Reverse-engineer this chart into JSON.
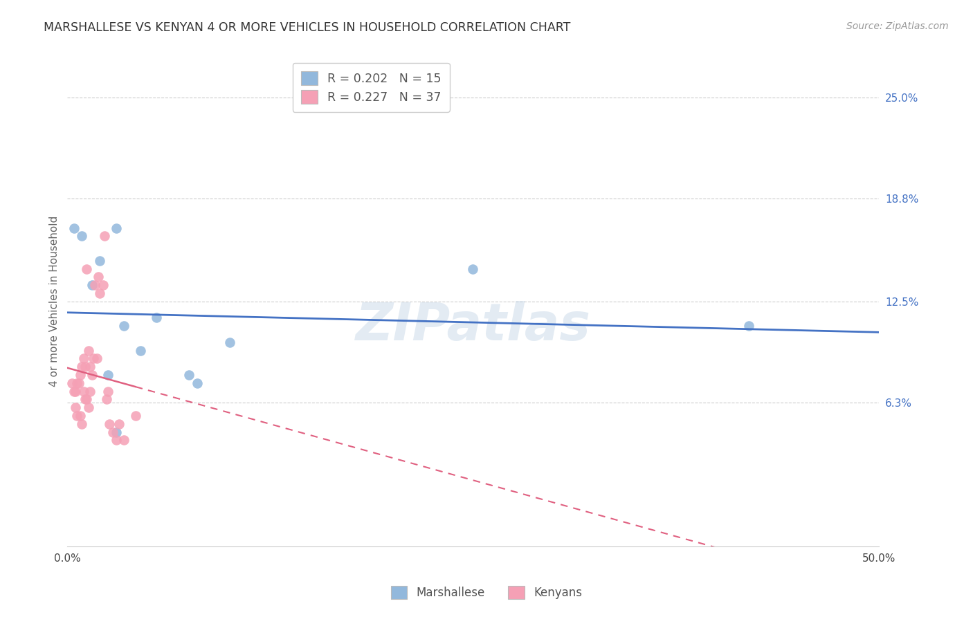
{
  "title": "MARSHALLESE VS KENYAN 4 OR MORE VEHICLES IN HOUSEHOLD CORRELATION CHART",
  "source": "Source: ZipAtlas.com",
  "ylabel_label": "4 or more Vehicles in Household",
  "marshallese_color": "#92b8dc",
  "kenyan_color": "#f5a0b5",
  "marshallese_R": 0.202,
  "marshallese_N": 15,
  "kenyan_R": 0.227,
  "kenyan_N": 37,
  "marshallese_line_color": "#4472c4",
  "kenyan_line_color": "#e06080",
  "background_color": "#ffffff",
  "grid_color": "#cccccc",
  "marshallese_x": [
    0.4,
    0.9,
    1.5,
    2.0,
    3.0,
    3.5,
    4.5,
    5.5,
    7.5,
    8.0,
    10.0,
    3.0,
    42.0,
    25.0,
    2.5
  ],
  "marshallese_y": [
    17.0,
    16.5,
    13.5,
    15.0,
    17.0,
    11.0,
    9.5,
    11.5,
    8.0,
    7.5,
    10.0,
    4.5,
    11.0,
    14.5,
    8.0
  ],
  "kenyan_x": [
    0.3,
    0.4,
    0.5,
    0.6,
    0.7,
    0.8,
    0.9,
    1.0,
    1.1,
    1.2,
    1.3,
    1.4,
    1.5,
    1.6,
    1.7,
    1.8,
    1.9,
    2.0,
    2.2,
    2.3,
    2.4,
    2.5,
    2.6,
    2.8,
    3.0,
    3.2,
    3.5,
    4.2,
    1.0,
    1.1,
    1.2,
    1.3,
    0.5,
    0.6,
    0.8,
    0.9,
    1.4
  ],
  "kenyan_y": [
    7.5,
    7.0,
    7.0,
    7.5,
    7.5,
    8.0,
    8.5,
    9.0,
    8.5,
    14.5,
    9.5,
    8.5,
    8.0,
    9.0,
    13.5,
    9.0,
    14.0,
    13.0,
    13.5,
    16.5,
    6.5,
    7.0,
    5.0,
    4.5,
    4.0,
    5.0,
    4.0,
    5.5,
    7.0,
    6.5,
    6.5,
    6.0,
    6.0,
    5.5,
    5.5,
    5.0,
    7.0
  ],
  "xlim": [
    0.0,
    50.0
  ],
  "ylim_bottom": -2.5,
  "ylim_top": 27.5,
  "ytick_vals": [
    6.3,
    12.5,
    18.8,
    25.0
  ],
  "ytick_labels": [
    "6.3%",
    "12.5%",
    "18.8%",
    "25.0%"
  ],
  "xtick_vals": [
    0,
    10,
    20,
    30,
    40,
    50
  ],
  "xtick_labels_show": {
    "0": "0.0%",
    "50": "50.0%"
  }
}
